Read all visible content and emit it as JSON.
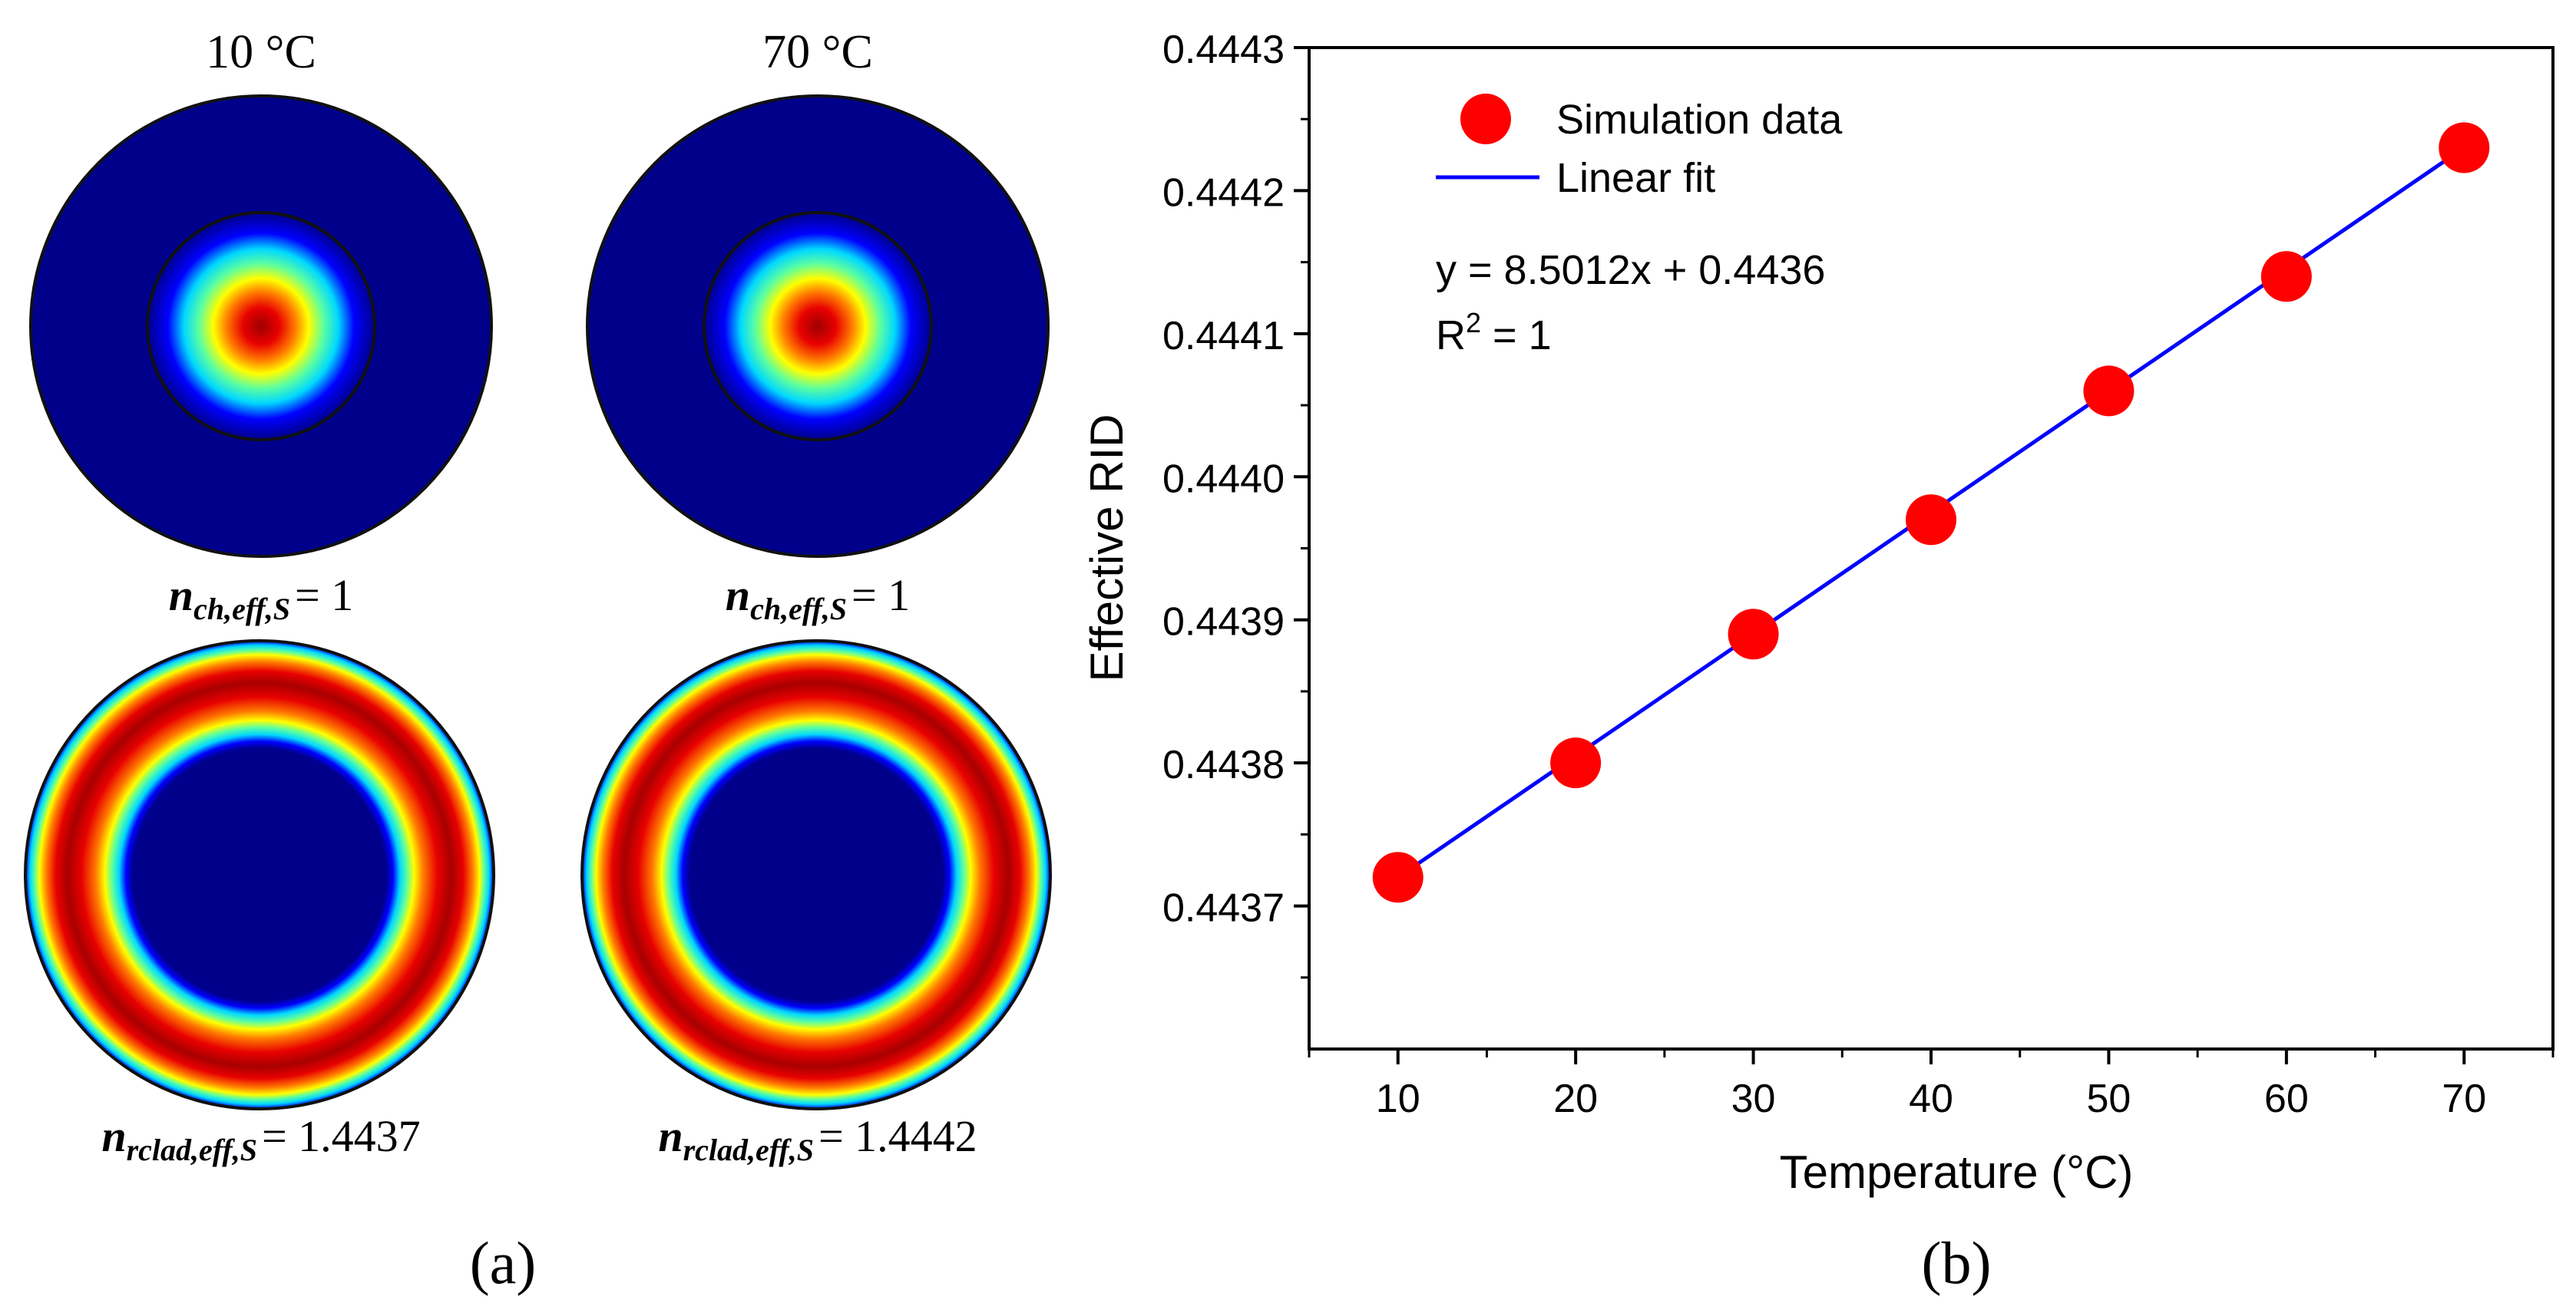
{
  "panel_a": {
    "caption": "(a)",
    "col_titles": [
      "10 °C",
      "70 °C"
    ],
    "modes": [
      {
        "sym": "n",
        "sub": "ch,eff,S",
        "value": "= 1"
      },
      {
        "sym": "n",
        "sub": "ch,eff,S",
        "value": "= 1"
      },
      {
        "sym": "n",
        "sub": "rclad,eff,S",
        "value": "= 1.4437"
      },
      {
        "sym": "n",
        "sub": "rclad,eff,S",
        "value": "= 1.4442"
      }
    ],
    "colors": {
      "background_mode": "#00008b",
      "field_stops": [
        "#00008b",
        "#0000ff",
        "#00d8ff",
        "#5dff9f",
        "#ffff00",
        "#ff7a00",
        "#e80000",
        "#9e0000"
      ]
    }
  },
  "panel_b": {
    "caption": "(b)"
  },
  "chart_data": {
    "type": "scatter",
    "title": "",
    "xlabel": "Temperature (°C)",
    "ylabel": "Effective RID",
    "xlim": [
      5,
      75
    ],
    "ylim": [
      0.4436,
      0.4443
    ],
    "xticks": [
      10,
      20,
      30,
      40,
      50,
      60,
      70
    ],
    "xtick_labels": [
      "10",
      "20",
      "30",
      "40",
      "50",
      "60",
      "70"
    ],
    "yticks": [
      0.4437,
      0.4438,
      0.4439,
      0.444,
      0.4441,
      0.4442,
      0.4443
    ],
    "ytick_labels": [
      "0.4437",
      "0.4438",
      "0.4439",
      "0.4440",
      "0.4441",
      "0.4442",
      "0.4443"
    ],
    "series": [
      {
        "name": "Simulation data",
        "kind": "scatter",
        "color": "#ff0000",
        "x": [
          10,
          20,
          30,
          40,
          50,
          60,
          70
        ],
        "y": [
          0.44372,
          0.4438,
          0.44389,
          0.44397,
          0.44406,
          0.44414,
          0.44423
        ]
      },
      {
        "name": "Linear fit",
        "kind": "line",
        "color": "#0000ff",
        "x": [
          10,
          70
        ],
        "y": [
          0.44372,
          0.44423
        ]
      }
    ],
    "legend": {
      "position": "top-left",
      "entries": [
        "Simulation data",
        "Linear fit"
      ]
    },
    "annotations": {
      "equation": "y = 8.5012x + 0.4436",
      "r2_prefix": "R",
      "r2_sup": "2",
      "r2_suffix": " = 1"
    },
    "grid": false
  }
}
